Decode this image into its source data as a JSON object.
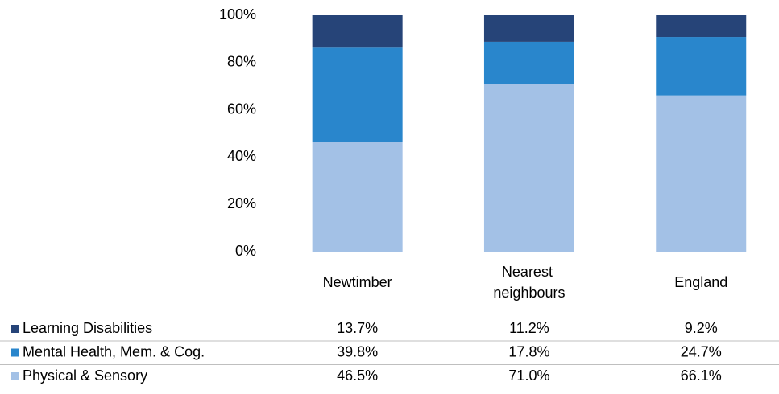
{
  "chart_data": {
    "type": "stacked_bar",
    "categories": [
      "Newtimber",
      "Nearest neighbours",
      "England"
    ],
    "series": [
      {
        "name": "Learning Disabilities",
        "color": "#264478",
        "values": [
          13.7,
          11.2,
          9.2
        ],
        "value_labels": [
          "13.7%",
          "11.2%",
          "9.2%"
        ]
      },
      {
        "name": "Mental Health, Mem. & Cog.",
        "color": "#2986cc",
        "values": [
          39.8,
          17.8,
          24.7
        ],
        "value_labels": [
          "39.8%",
          "17.8%",
          "24.7%"
        ]
      },
      {
        "name": "Physical & Sensory",
        "color": "#a3c1e6",
        "values": [
          46.5,
          71.0,
          66.1
        ],
        "value_labels": [
          "46.5%",
          "71.0%",
          "66.1%"
        ]
      }
    ],
    "ylim": [
      0,
      100
    ],
    "yticks": [
      {
        "value": 0,
        "label": "0%"
      },
      {
        "value": 20,
        "label": "20%"
      },
      {
        "value": 40,
        "label": "40%"
      },
      {
        "value": 60,
        "label": "60%"
      },
      {
        "value": 80,
        "label": "80%"
      },
      {
        "value": 100,
        "label": "100%"
      }
    ],
    "grid": false
  }
}
